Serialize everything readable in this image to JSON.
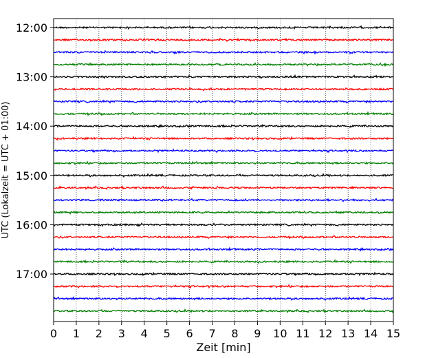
{
  "chart_data": {
    "type": "line",
    "title": "",
    "xlabel": "Zeit  [min]",
    "ylabel": "UTC (Lokalzeit = UTC + 01:00)",
    "xlim": [
      0,
      15
    ],
    "x_ticks": [
      0,
      1,
      2,
      3,
      4,
      5,
      6,
      7,
      8,
      9,
      10,
      11,
      12,
      13,
      14,
      15
    ],
    "x_tick_labels": [
      "0",
      "1",
      "2",
      "3",
      "4",
      "5",
      "6",
      "7",
      "8",
      "9",
      "10",
      "11",
      "12",
      "13",
      "14",
      "15"
    ],
    "y_tick_labels": [
      "12:00",
      "13:00",
      "14:00",
      "15:00",
      "16:00",
      "17:00"
    ],
    "grid": "x-dotted",
    "trace_colors": [
      "#000000",
      "#ff0000",
      "#0000ff",
      "#007f00"
    ],
    "series": [
      {
        "start": "12:00"
      },
      {
        "start": "12:15"
      },
      {
        "start": "12:30"
      },
      {
        "start": "12:45"
      },
      {
        "start": "13:00"
      },
      {
        "start": "13:15"
      },
      {
        "start": "13:30"
      },
      {
        "start": "13:45"
      },
      {
        "start": "14:00"
      },
      {
        "start": "14:15"
      },
      {
        "start": "14:30"
      },
      {
        "start": "14:45"
      },
      {
        "start": "15:00"
      },
      {
        "start": "15:15"
      },
      {
        "start": "15:30"
      },
      {
        "start": "15:45"
      },
      {
        "start": "16:00"
      },
      {
        "start": "16:15"
      },
      {
        "start": "16:30"
      },
      {
        "start": "16:45"
      },
      {
        "start": "17:00"
      },
      {
        "start": "17:15"
      },
      {
        "start": "17:30"
      },
      {
        "start": "17:45"
      }
    ]
  }
}
